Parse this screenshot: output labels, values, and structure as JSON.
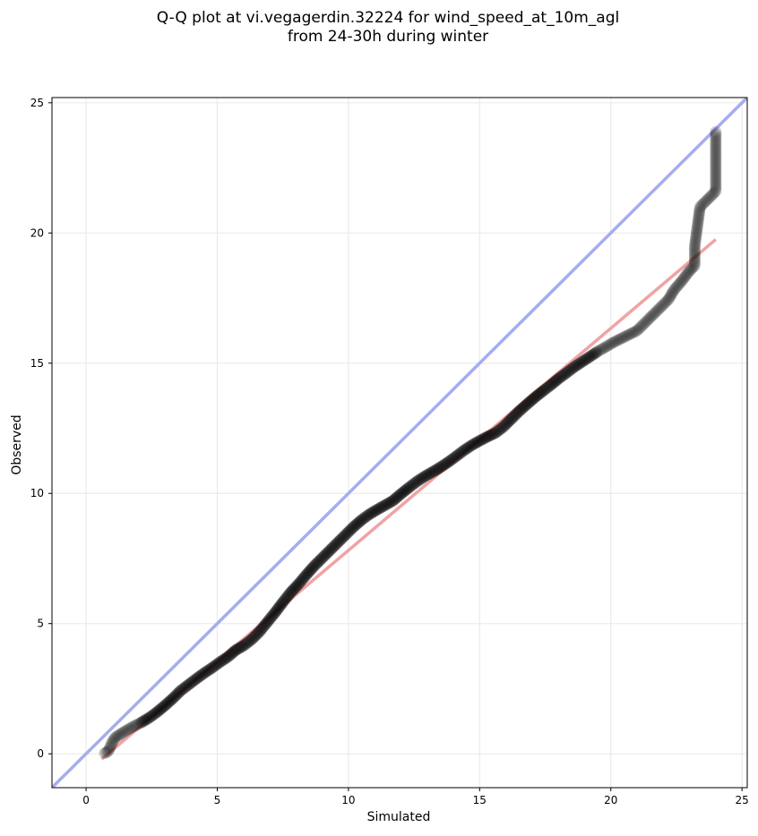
{
  "chart_data": {
    "type": "scatter",
    "title_lines": [
      "Q-Q plot at vi.vegagerdin.32224 for wind_speed_at_10m_agl",
      "from 24-30h during winter"
    ],
    "xlabel": "Simulated",
    "ylabel": "Observed",
    "xlim": [
      -1.3,
      25.2
    ],
    "ylim": [
      -1.3,
      25.2
    ],
    "xticks": [
      0,
      5,
      10,
      15,
      20,
      25
    ],
    "yticks": [
      0,
      5,
      10,
      15,
      20,
      25
    ],
    "grid": true,
    "reference_line": {
      "x": [
        -1.3,
        25.2
      ],
      "y": [
        -1.3,
        25.2
      ],
      "color": "#a6acf0"
    },
    "fit_line": {
      "x": [
        0.6,
        24.0
      ],
      "y": [
        -0.2,
        19.75
      ],
      "color": "#f0a3a3"
    },
    "series": [
      {
        "marker_color": "#000000",
        "points": [
          [
            0.7,
            0.02
          ],
          [
            0.85,
            0.1
          ],
          [
            1.0,
            0.45
          ],
          [
            1.1,
            0.62
          ],
          [
            1.3,
            0.75
          ],
          [
            1.5,
            0.88
          ],
          [
            1.8,
            1.05
          ],
          [
            2.1,
            1.2
          ],
          [
            2.4,
            1.38
          ],
          [
            2.7,
            1.6
          ],
          [
            3.0,
            1.85
          ],
          [
            3.3,
            2.12
          ],
          [
            3.6,
            2.42
          ],
          [
            3.9,
            2.65
          ],
          [
            4.2,
            2.88
          ],
          [
            4.5,
            3.1
          ],
          [
            4.8,
            3.3
          ],
          [
            5.1,
            3.52
          ],
          [
            5.4,
            3.72
          ],
          [
            5.7,
            3.98
          ],
          [
            6.0,
            4.15
          ],
          [
            6.3,
            4.38
          ],
          [
            6.6,
            4.68
          ],
          [
            6.9,
            5.05
          ],
          [
            7.2,
            5.42
          ],
          [
            7.5,
            5.82
          ],
          [
            7.8,
            6.2
          ],
          [
            8.1,
            6.52
          ],
          [
            8.4,
            6.88
          ],
          [
            8.7,
            7.22
          ],
          [
            9.0,
            7.52
          ],
          [
            9.3,
            7.82
          ],
          [
            9.6,
            8.12
          ],
          [
            9.9,
            8.42
          ],
          [
            10.2,
            8.72
          ],
          [
            10.5,
            8.98
          ],
          [
            10.8,
            9.2
          ],
          [
            11.1,
            9.38
          ],
          [
            11.4,
            9.55
          ],
          [
            11.7,
            9.72
          ],
          [
            12.0,
            9.98
          ],
          [
            12.3,
            10.22
          ],
          [
            12.6,
            10.45
          ],
          [
            12.9,
            10.65
          ],
          [
            13.2,
            10.82
          ],
          [
            13.5,
            11.0
          ],
          [
            13.8,
            11.2
          ],
          [
            14.1,
            11.42
          ],
          [
            14.4,
            11.65
          ],
          [
            14.7,
            11.85
          ],
          [
            15.0,
            12.02
          ],
          [
            15.3,
            12.18
          ],
          [
            15.6,
            12.32
          ],
          [
            15.9,
            12.55
          ],
          [
            16.2,
            12.85
          ],
          [
            16.5,
            13.15
          ],
          [
            16.8,
            13.42
          ],
          [
            17.1,
            13.68
          ],
          [
            17.4,
            13.92
          ],
          [
            17.7,
            14.15
          ],
          [
            18.0,
            14.4
          ],
          [
            18.3,
            14.62
          ],
          [
            18.6,
            14.85
          ],
          [
            18.9,
            15.05
          ],
          [
            19.2,
            15.25
          ],
          [
            19.5,
            15.45
          ],
          [
            19.8,
            15.62
          ],
          [
            20.1,
            15.8
          ],
          [
            20.4,
            15.95
          ],
          [
            20.7,
            16.1
          ],
          [
            21.0,
            16.25
          ],
          [
            21.3,
            16.55
          ],
          [
            21.6,
            16.85
          ],
          [
            21.9,
            17.15
          ],
          [
            22.2,
            17.45
          ],
          [
            22.4,
            17.8
          ],
          [
            22.7,
            18.15
          ],
          [
            23.0,
            18.55
          ],
          [
            23.2,
            18.75
          ],
          [
            23.2,
            19.5
          ],
          [
            23.4,
            21.0
          ],
          [
            24.0,
            21.6
          ],
          [
            24.0,
            23.9
          ]
        ]
      }
    ]
  }
}
